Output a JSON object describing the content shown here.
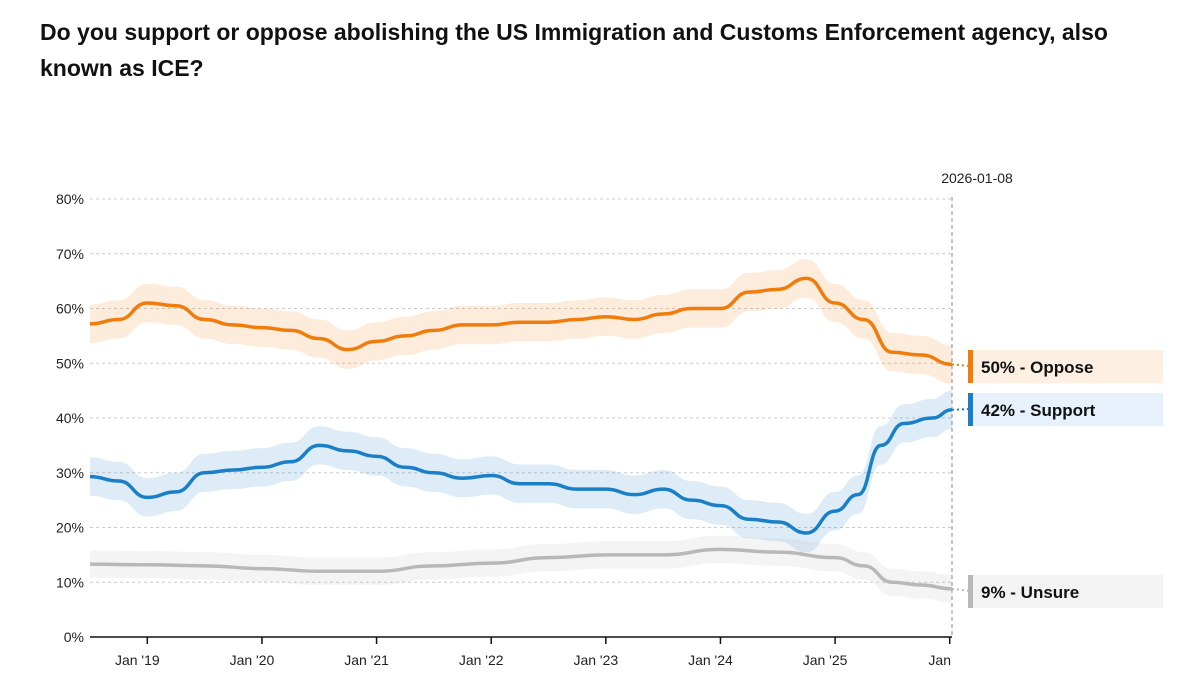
{
  "chart_data": {
    "type": "line",
    "title": "Do you support or oppose abolishing the US Immigration and Customs Enforcement agency, also known as ICE?",
    "xlabel": "",
    "ylabel": "",
    "ylim": [
      0,
      80
    ],
    "xlim": [
      2018.5,
      2026.02
    ],
    "y_ticks": [
      "0%",
      "10%",
      "20%",
      "30%",
      "40%",
      "50%",
      "60%",
      "70%",
      "80%"
    ],
    "x_ticks": [
      {
        "x": 2019,
        "label": "Jan '19"
      },
      {
        "x": 2020,
        "label": "Jan '20"
      },
      {
        "x": 2021,
        "label": "Jan '21"
      },
      {
        "x": 2022,
        "label": "Jan '22"
      },
      {
        "x": 2023,
        "label": "Jan '23"
      },
      {
        "x": 2024,
        "label": "Jan '24"
      },
      {
        "x": 2025,
        "label": "Jan '25"
      },
      {
        "x": 2026,
        "label": "Jan"
      }
    ],
    "grid": true,
    "cursor_date": "2026-01-08",
    "legend": "right",
    "series": [
      {
        "name": "Oppose",
        "label": "50% - Oppose",
        "color": "#f07c0c",
        "band": 3.5,
        "x": [
          2018.5,
          2018.75,
          2019,
          2019.25,
          2019.5,
          2019.75,
          2020,
          2020.25,
          2020.5,
          2020.75,
          2021,
          2021.25,
          2021.5,
          2021.75,
          2022,
          2022.25,
          2022.5,
          2022.75,
          2023,
          2023.25,
          2023.5,
          2023.75,
          2024,
          2024.25,
          2024.5,
          2024.75,
          2025,
          2025.25,
          2025.5,
          2025.75,
          2026.02
        ],
        "y": [
          57.2,
          58,
          61,
          60.5,
          58,
          57,
          56.5,
          56,
          54.5,
          52.5,
          54,
          55,
          56,
          57,
          57,
          57.5,
          57.5,
          58,
          58.5,
          58,
          59,
          60,
          60,
          63,
          63.5,
          65.5,
          61,
          58,
          52,
          51.5,
          49.8
        ]
      },
      {
        "name": "Support",
        "label": "42% - Support",
        "color": "#1a7fc6",
        "band": 3.5,
        "x": [
          2018.5,
          2018.75,
          2019,
          2019.25,
          2019.5,
          2019.75,
          2020,
          2020.25,
          2020.5,
          2020.75,
          2021,
          2021.25,
          2021.5,
          2021.75,
          2022,
          2022.25,
          2022.5,
          2022.75,
          2023,
          2023.25,
          2023.5,
          2023.75,
          2024,
          2024.25,
          2024.5,
          2024.75,
          2025,
          2025.2,
          2025.4,
          2025.6,
          2025.85,
          2026.02
        ],
        "y": [
          29.3,
          28.5,
          25.5,
          26.5,
          30,
          30.5,
          31,
          32,
          35,
          34,
          33,
          31,
          30,
          29,
          29.5,
          28,
          28,
          27,
          27,
          26,
          27,
          25,
          24,
          21.5,
          21,
          19,
          23,
          26,
          35,
          39,
          40,
          41.5
        ]
      },
      {
        "name": "Unsure",
        "label": "9% - Unsure",
        "color": "#b8b8b8",
        "band": 2.5,
        "x": [
          2018.5,
          2019,
          2019.5,
          2020,
          2020.5,
          2021,
          2021.5,
          2022,
          2022.5,
          2023,
          2023.5,
          2024,
          2024.5,
          2025,
          2025.25,
          2025.5,
          2025.75,
          2026.02
        ],
        "y": [
          13.3,
          13.2,
          13,
          12.5,
          12,
          12,
          13,
          13.5,
          14.5,
          15,
          15,
          16,
          15.5,
          14.5,
          13,
          10,
          9.5,
          8.8
        ]
      }
    ]
  }
}
